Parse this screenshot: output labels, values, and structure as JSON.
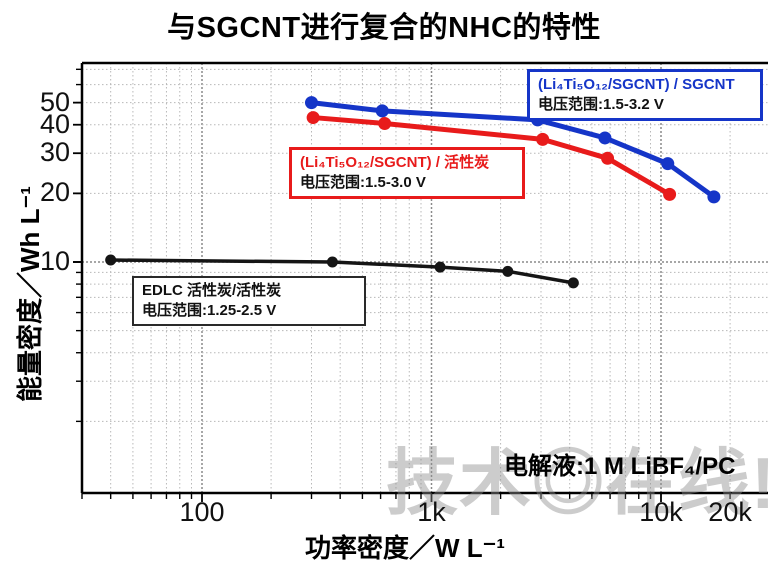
{
  "title": "与SGCNT进行复合的NHC的特性",
  "watermark": "技术◎在线!",
  "note": "电解液:1 M LiBF₄/PC",
  "axes": {
    "x": {
      "label": "功率密度／W L⁻¹",
      "scale": "log",
      "ticks": [
        {
          "value": 100,
          "label": "100"
        },
        {
          "value": 1000,
          "label": "1k"
        },
        {
          "value": 10000,
          "label": "10k"
        },
        {
          "value": 20000,
          "label": "20k"
        }
      ]
    },
    "y": {
      "label": "能量密度／Wh L⁻¹",
      "scale": "log",
      "ticks": [
        {
          "value": 50,
          "label": "50"
        },
        {
          "value": 40,
          "label": "40"
        },
        {
          "value": 30,
          "label": "30"
        },
        {
          "value": 20,
          "label": "20"
        },
        {
          "value": 10,
          "label": "10"
        }
      ]
    }
  },
  "chart_data": {
    "type": "line",
    "title": "与SGCNT进行复合的NHC的特性",
    "xlabel": "功率密度／W L⁻¹",
    "ylabel": "能量密度／Wh L⁻¹",
    "x_scale": "log",
    "y_scale": "log",
    "x_range": [
      30,
      30000
    ],
    "y_range": [
      1,
      75
    ],
    "grid": true,
    "series": [
      {
        "name": "(Li₄Ti₅O₁₂/SGCNT) / SGCNT",
        "voltage": "电压范围:1.5-3.2 V",
        "color": "#1535c8",
        "line_width": 5,
        "marker_radius": 6.5,
        "points": [
          [
            300,
            50
          ],
          [
            610,
            46
          ],
          [
            2900,
            42
          ],
          [
            5700,
            35
          ],
          [
            10700,
            27
          ],
          [
            17000,
            19.3
          ]
        ]
      },
      {
        "name": "(Li₄Ti₅O₁₂/SGCNT) / 活性炭",
        "voltage": "电压范围:1.5-3.0 V",
        "color": "#e81b1b",
        "line_width": 5,
        "marker_radius": 6.5,
        "points": [
          [
            305,
            43
          ],
          [
            625,
            40.5
          ],
          [
            3050,
            34.5
          ],
          [
            5850,
            28.5
          ],
          [
            10900,
            19.8
          ]
        ]
      },
      {
        "name": "EDLC 活性炭/活性炭",
        "voltage": "电压范围:1.25-2.5 V",
        "color": "#151515",
        "line_width": 3.5,
        "marker_radius": 5.5,
        "points": [
          [
            40,
            10.2
          ],
          [
            370,
            10.0
          ],
          [
            1090,
            9.5
          ],
          [
            2150,
            9.1
          ],
          [
            4150,
            8.1
          ]
        ]
      }
    ]
  },
  "colors": {
    "grid_minor": "#b8b8b8",
    "grid_major": "#8a8a8a",
    "axis": "#000000"
  }
}
